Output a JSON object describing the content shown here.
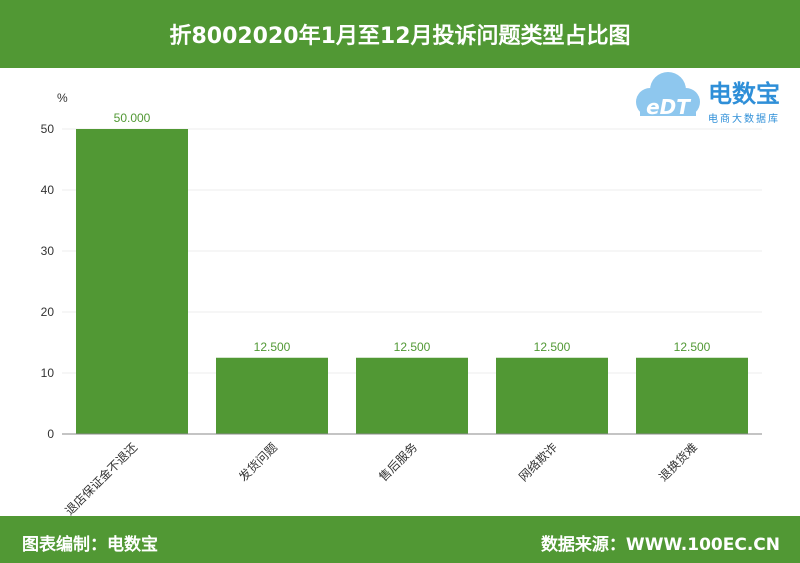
{
  "title": "折8002020年1月至12月投诉问题类型占比图",
  "footer": {
    "left": "图表编制：电数宝",
    "right": "数据来源：WWW.100EC.CN"
  },
  "logo": {
    "mark": "eDT",
    "brand": "电数宝",
    "sub": "电商大数据库"
  },
  "colors": {
    "bar": "#519834",
    "header": "#519834"
  },
  "chart_data": {
    "type": "bar",
    "ylabel": "%",
    "ylim": [
      0,
      50
    ],
    "yticks": [
      0,
      10,
      20,
      30,
      40,
      50
    ],
    "categories": [
      "退店保证金不退还",
      "发货问题",
      "售后服务",
      "网络欺诈",
      "退换货难"
    ],
    "values": [
      50.0,
      12.5,
      12.5,
      12.5,
      12.5
    ],
    "value_labels": [
      "50.000",
      "12.500",
      "12.500",
      "12.500",
      "12.500"
    ]
  }
}
